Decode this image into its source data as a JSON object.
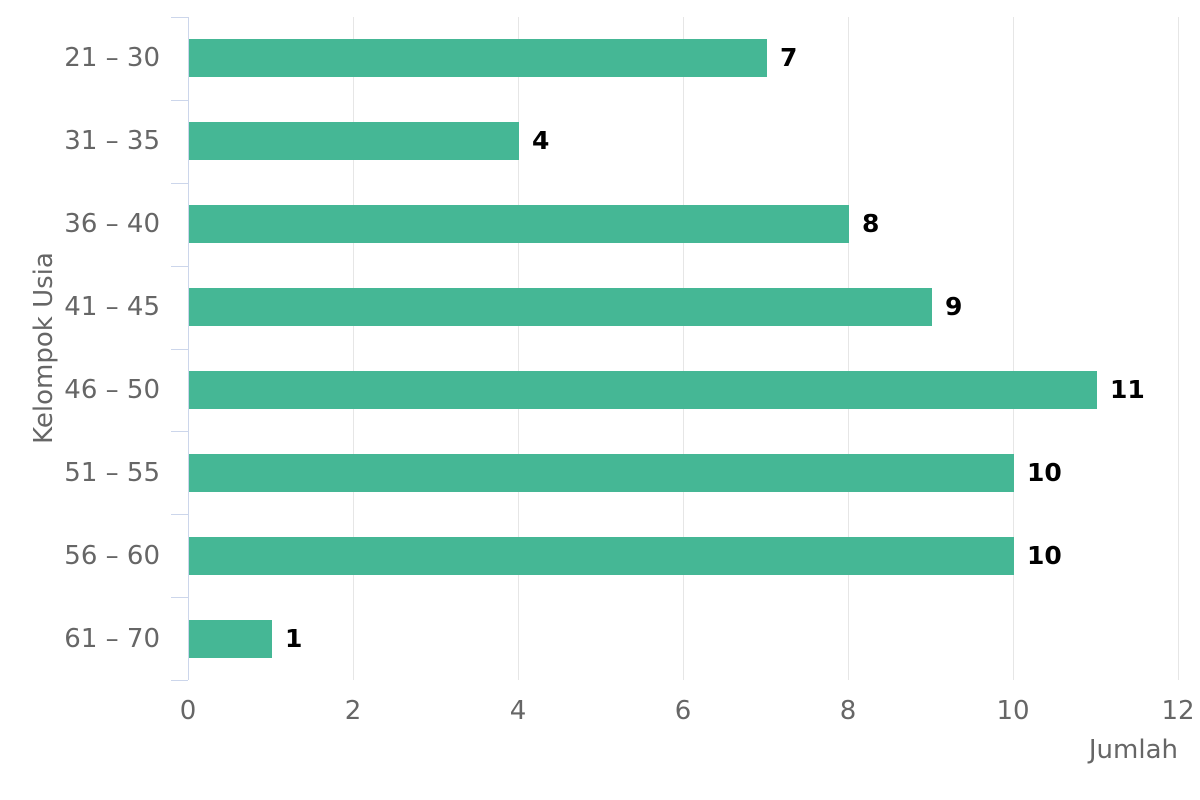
{
  "chart_data": {
    "type": "bar",
    "orientation": "horizontal",
    "title": "",
    "categories": [
      "21 – 30",
      "31 – 35",
      "36 – 40",
      "41 – 45",
      "46 – 50",
      "51 – 55",
      "56 – 60",
      "61 – 70"
    ],
    "values": [
      7,
      4,
      8,
      9,
      11,
      10,
      10,
      1
    ],
    "data_labels": [
      "7",
      "4",
      "8",
      "9",
      "11",
      "10",
      "10",
      "1"
    ],
    "xlabel": "Jumlah",
    "ylabel": "Kelompok Usia",
    "xticks": [
      0,
      2,
      4,
      6,
      8,
      10,
      12
    ],
    "xtick_labels": [
      "0",
      "2",
      "4",
      "6",
      "8",
      "10",
      "12"
    ],
    "xlim": [
      0,
      12
    ],
    "grid": "vertical",
    "legend": "none",
    "colors": {
      "bar": "#45b795",
      "category_axis_line": "#ccd6eb",
      "gridline": "#e6e6e6",
      "axis_text": "#666666",
      "data_label_text": "#000000",
      "background": "#ffffff"
    }
  }
}
